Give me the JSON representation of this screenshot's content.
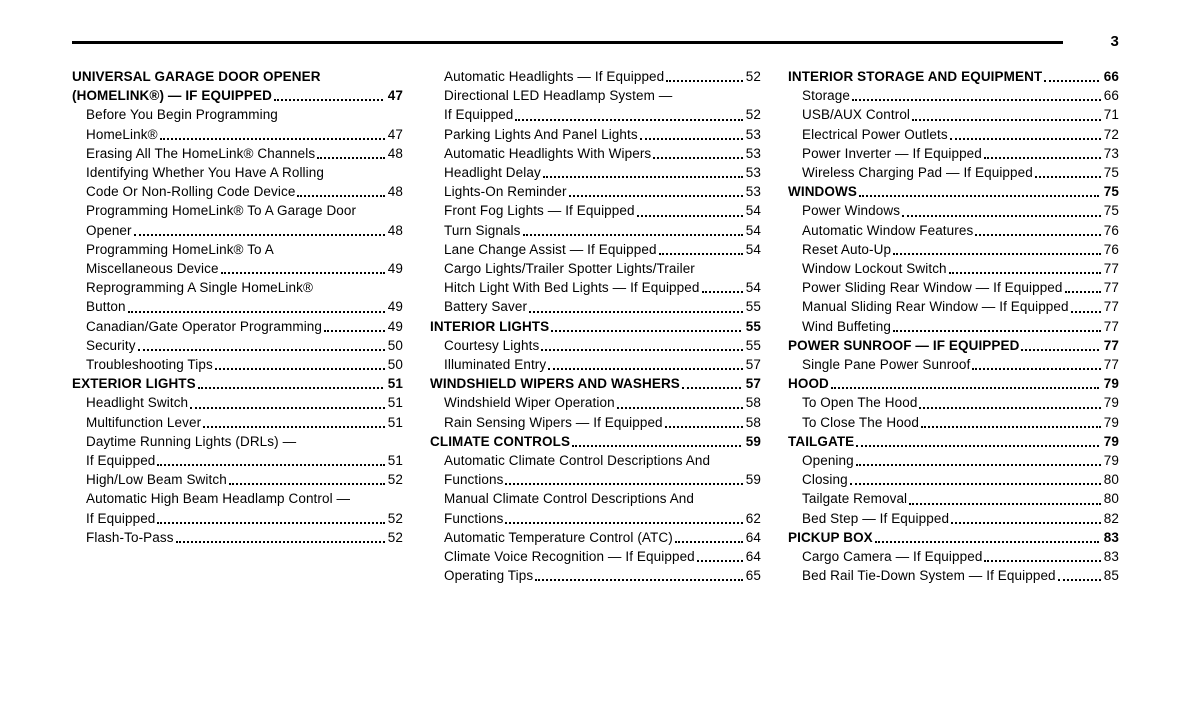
{
  "page_header": {
    "page_number": "3"
  },
  "toc": {
    "columns": [
      {
        "lines": [
          {
            "t": "UNIVERSAL GARAGE DOOR OPENER",
            "p": null,
            "b": true,
            "i": 0
          },
          {
            "t": "(HOMELINK®) — IF EQUIPPED",
            "p": "47",
            "b": true,
            "i": 0
          },
          {
            "t": "Before You Begin Programming",
            "p": null,
            "b": false,
            "i": 1
          },
          {
            "t": "HomeLink®",
            "p": "47",
            "b": false,
            "i": 1
          },
          {
            "t": "Erasing All The HomeLink® Channels",
            "p": "48",
            "b": false,
            "i": 1
          },
          {
            "t": "Identifying Whether You Have A Rolling",
            "p": null,
            "b": false,
            "i": 1
          },
          {
            "t": "Code Or Non-Rolling Code Device",
            "p": "48",
            "b": false,
            "i": 1
          },
          {
            "t": "Programming HomeLink® To A Garage Door",
            "p": null,
            "b": false,
            "i": 1
          },
          {
            "t": "Opener",
            "p": "48",
            "b": false,
            "i": 1
          },
          {
            "t": "Programming HomeLink® To A",
            "p": null,
            "b": false,
            "i": 1
          },
          {
            "t": "Miscellaneous Device",
            "p": "49",
            "b": false,
            "i": 1
          },
          {
            "t": "Reprogramming A Single HomeLink®",
            "p": null,
            "b": false,
            "i": 1
          },
          {
            "t": "Button",
            "p": "49",
            "b": false,
            "i": 1
          },
          {
            "t": "Canadian/Gate Operator Programming",
            "p": "49",
            "b": false,
            "i": 1
          },
          {
            "t": "Security",
            "p": "50",
            "b": false,
            "i": 1
          },
          {
            "t": "Troubleshooting Tips",
            "p": "50",
            "b": false,
            "i": 1
          },
          {
            "t": "EXTERIOR LIGHTS",
            "p": "51",
            "b": true,
            "i": 0
          },
          {
            "t": "Headlight Switch",
            "p": "51",
            "b": false,
            "i": 1
          },
          {
            "t": "Multifunction Lever",
            "p": "51",
            "b": false,
            "i": 1
          },
          {
            "t": "Daytime Running Lights (DRLs) —",
            "p": null,
            "b": false,
            "i": 1
          },
          {
            "t": "If Equipped",
            "p": "51",
            "b": false,
            "i": 1
          },
          {
            "t": "High/Low Beam Switch",
            "p": "52",
            "b": false,
            "i": 1
          },
          {
            "t": "Automatic High Beam Headlamp Control —",
            "p": null,
            "b": false,
            "i": 1
          },
          {
            "t": "If Equipped",
            "p": "52",
            "b": false,
            "i": 1
          },
          {
            "t": "Flash-To-Pass",
            "p": "52",
            "b": false,
            "i": 1
          }
        ]
      },
      {
        "lines": [
          {
            "t": "Automatic Headlights — If Equipped",
            "p": "52",
            "b": false,
            "i": 1
          },
          {
            "t": "Directional LED Headlamp System —",
            "p": null,
            "b": false,
            "i": 1
          },
          {
            "t": "If Equipped",
            "p": "52",
            "b": false,
            "i": 1
          },
          {
            "t": "Parking Lights And Panel Lights",
            "p": "53",
            "b": false,
            "i": 1
          },
          {
            "t": "Automatic Headlights With Wipers",
            "p": "53",
            "b": false,
            "i": 1
          },
          {
            "t": "Headlight Delay",
            "p": "53",
            "b": false,
            "i": 1
          },
          {
            "t": "Lights-On Reminder",
            "p": "53",
            "b": false,
            "i": 1
          },
          {
            "t": "Front Fog Lights — If Equipped",
            "p": "54",
            "b": false,
            "i": 1
          },
          {
            "t": "Turn Signals",
            "p": "54",
            "b": false,
            "i": 1
          },
          {
            "t": "Lane Change Assist — If Equipped",
            "p": "54",
            "b": false,
            "i": 1
          },
          {
            "t": "Cargo Lights/Trailer Spotter Lights/Trailer",
            "p": null,
            "b": false,
            "i": 1
          },
          {
            "t": "Hitch Light With Bed Lights — If Equipped",
            "p": "54",
            "b": false,
            "i": 1
          },
          {
            "t": "Battery Saver",
            "p": "55",
            "b": false,
            "i": 1
          },
          {
            "t": "INTERIOR LIGHTS",
            "p": "55",
            "b": true,
            "i": 0
          },
          {
            "t": "Courtesy Lights",
            "p": "55",
            "b": false,
            "i": 1
          },
          {
            "t": "Illuminated Entry",
            "p": "57",
            "b": false,
            "i": 1
          },
          {
            "t": "WINDSHIELD WIPERS AND WASHERS",
            "p": "57",
            "b": true,
            "i": 0
          },
          {
            "t": "Windshield Wiper Operation",
            "p": "58",
            "b": false,
            "i": 1
          },
          {
            "t": "Rain Sensing Wipers — If Equipped",
            "p": "58",
            "b": false,
            "i": 1
          },
          {
            "t": "CLIMATE CONTROLS",
            "p": "59",
            "b": true,
            "i": 0
          },
          {
            "t": "Automatic Climate Control Descriptions And",
            "p": null,
            "b": false,
            "i": 1
          },
          {
            "t": "Functions",
            "p": "59",
            "b": false,
            "i": 1
          },
          {
            "t": "Manual Climate Control Descriptions And",
            "p": null,
            "b": false,
            "i": 1
          },
          {
            "t": "Functions",
            "p": "62",
            "b": false,
            "i": 1
          },
          {
            "t": "Automatic Temperature Control (ATC)",
            "p": "64",
            "b": false,
            "i": 1
          },
          {
            "t": "Climate Voice Recognition — If Equipped",
            "p": "64",
            "b": false,
            "i": 1
          },
          {
            "t": "Operating Tips",
            "p": "65",
            "b": false,
            "i": 1
          }
        ]
      },
      {
        "lines": [
          {
            "t": "INTERIOR STORAGE AND EQUIPMENT",
            "p": "66",
            "b": true,
            "i": 0
          },
          {
            "t": "Storage",
            "p": "66",
            "b": false,
            "i": 1
          },
          {
            "t": "USB/AUX Control",
            "p": "71",
            "b": false,
            "i": 1
          },
          {
            "t": "Electrical Power Outlets",
            "p": "72",
            "b": false,
            "i": 1
          },
          {
            "t": "Power Inverter — If Equipped",
            "p": "73",
            "b": false,
            "i": 1
          },
          {
            "t": "Wireless Charging Pad — If Equipped",
            "p": "75",
            "b": false,
            "i": 1
          },
          {
            "t": "WINDOWS",
            "p": "75",
            "b": true,
            "i": 0
          },
          {
            "t": "Power Windows",
            "p": "75",
            "b": false,
            "i": 1
          },
          {
            "t": "Automatic Window Features",
            "p": "76",
            "b": false,
            "i": 1
          },
          {
            "t": "Reset Auto-Up",
            "p": "76",
            "b": false,
            "i": 1
          },
          {
            "t": "Window Lockout Switch",
            "p": "77",
            "b": false,
            "i": 1
          },
          {
            "t": "Power Sliding Rear Window — If Equipped",
            "p": "77",
            "b": false,
            "i": 1
          },
          {
            "t": "Manual Sliding Rear Window — If Equipped",
            "p": "77",
            "b": false,
            "i": 1
          },
          {
            "t": "Wind Buffeting",
            "p": "77",
            "b": false,
            "i": 1
          },
          {
            "t": "POWER SUNROOF — IF EQUIPPED",
            "p": "77",
            "b": true,
            "i": 0
          },
          {
            "t": "Single Pane Power Sunroof",
            "p": "77",
            "b": false,
            "i": 1
          },
          {
            "t": "HOOD",
            "p": "79",
            "b": true,
            "i": 0
          },
          {
            "t": "To Open The Hood",
            "p": "79",
            "b": false,
            "i": 1
          },
          {
            "t": "To Close The Hood",
            "p": "79",
            "b": false,
            "i": 1
          },
          {
            "t": "TAILGATE",
            "p": "79",
            "b": true,
            "i": 0
          },
          {
            "t": "Opening",
            "p": "79",
            "b": false,
            "i": 1
          },
          {
            "t": "Closing",
            "p": "80",
            "b": false,
            "i": 1
          },
          {
            "t": "Tailgate Removal",
            "p": "80",
            "b": false,
            "i": 1
          },
          {
            "t": "Bed Step — If Equipped",
            "p": "82",
            "b": false,
            "i": 1
          },
          {
            "t": "PICKUP BOX",
            "p": "83",
            "b": true,
            "i": 0
          },
          {
            "t": "Cargo Camera — If Equipped",
            "p": "83",
            "b": false,
            "i": 1
          },
          {
            "t": "Bed Rail Tie-Down System — If Equipped",
            "p": "85",
            "b": false,
            "i": 1
          }
        ]
      }
    ]
  }
}
